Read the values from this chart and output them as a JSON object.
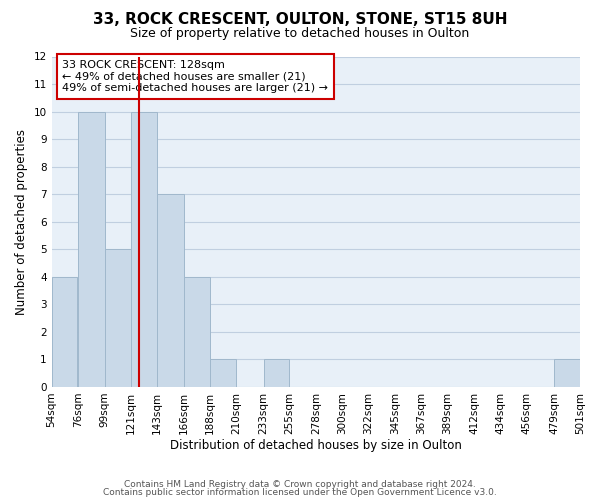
{
  "title": "33, ROCK CRESCENT, OULTON, STONE, ST15 8UH",
  "subtitle": "Size of property relative to detached houses in Oulton",
  "xlabel": "Distribution of detached houses by size in Oulton",
  "ylabel": "Number of detached properties",
  "footer_lines": [
    "Contains HM Land Registry data © Crown copyright and database right 2024.",
    "Contains public sector information licensed under the Open Government Licence v3.0."
  ],
  "bin_edges": [
    54,
    76,
    99,
    121,
    143,
    166,
    188,
    210,
    233,
    255,
    278,
    300,
    322,
    345,
    367,
    389,
    412,
    434,
    456,
    479,
    501
  ],
  "bin_labels": [
    "54sqm",
    "76sqm",
    "99sqm",
    "121sqm",
    "143sqm",
    "166sqm",
    "188sqm",
    "210sqm",
    "233sqm",
    "255sqm",
    "278sqm",
    "300sqm",
    "322sqm",
    "345sqm",
    "367sqm",
    "389sqm",
    "412sqm",
    "434sqm",
    "456sqm",
    "479sqm",
    "501sqm"
  ],
  "counts": [
    4,
    10,
    5,
    10,
    7,
    4,
    1,
    0,
    1,
    0,
    0,
    0,
    0,
    0,
    0,
    0,
    0,
    0,
    0,
    1
  ],
  "bar_color": "#c9d9e8",
  "bar_edgecolor": "#a0b8cc",
  "property_line_x": 128,
  "property_line_color": "#cc0000",
  "annotation_text": "33 ROCK CRESCENT: 128sqm\n← 49% of detached houses are smaller (21)\n49% of semi-detached houses are larger (21) →",
  "annotation_box_edgecolor": "#cc0000",
  "ylim": [
    0,
    12
  ],
  "yticks": [
    0,
    1,
    2,
    3,
    4,
    5,
    6,
    7,
    8,
    9,
    10,
    11,
    12
  ],
  "grid_color": "#c0cfe0",
  "background_color": "#e8f0f8",
  "title_fontsize": 11,
  "subtitle_fontsize": 9,
  "axis_label_fontsize": 8.5,
  "tick_fontsize": 7.5,
  "annotation_fontsize": 8,
  "footer_fontsize": 6.5
}
